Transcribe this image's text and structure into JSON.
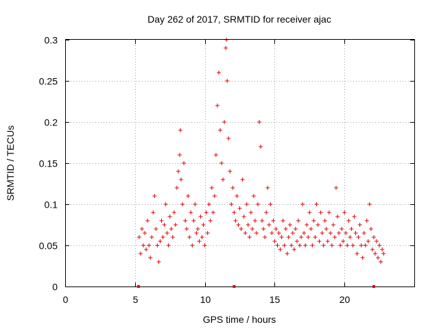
{
  "chart_data": {
    "type": "scatter",
    "title": "Day 262 of 2017, SRMTID for receiver ajac",
    "xlabel": "GPS time / hours",
    "ylabel": "SRMTID / TECUs",
    "xlim": [
      0,
      25
    ],
    "ylim": [
      0,
      0.3
    ],
    "xticks": [
      0,
      5,
      10,
      15,
      20
    ],
    "xtick_labels": [
      "0",
      "5",
      "10",
      "15",
      "20"
    ],
    "yticks": [
      0,
      0.05,
      0.1,
      0.15,
      0.2,
      0.25,
      0.3
    ],
    "ytick_labels": [
      "0",
      "0.05",
      "0.1",
      "0.15",
      "0.2",
      "0.25",
      "0.3"
    ],
    "grid": true,
    "marker_color": "#e00000",
    "axis_markers_x": [
      5.25,
      12.1,
      22.1
    ],
    "series": [
      {
        "name": "SRMTID",
        "points": [
          [
            5.3,
            0.06
          ],
          [
            5.4,
            0.04
          ],
          [
            5.5,
            0.07
          ],
          [
            5.6,
            0.05
          ],
          [
            5.7,
            0.065
          ],
          [
            5.8,
            0.045
          ],
          [
            5.9,
            0.08
          ],
          [
            6.0,
            0.05
          ],
          [
            6.1,
            0.035
          ],
          [
            6.2,
            0.06
          ],
          [
            6.3,
            0.09
          ],
          [
            6.4,
            0.11
          ],
          [
            6.5,
            0.07
          ],
          [
            6.6,
            0.05
          ],
          [
            6.7,
            0.03
          ],
          [
            6.8,
            0.055
          ],
          [
            6.9,
            0.08
          ],
          [
            7.0,
            0.06
          ],
          [
            7.1,
            0.075
          ],
          [
            7.2,
            0.1
          ],
          [
            7.3,
            0.065
          ],
          [
            7.4,
            0.05
          ],
          [
            7.5,
            0.085
          ],
          [
            7.6,
            0.07
          ],
          [
            7.7,
            0.06
          ],
          [
            7.8,
            0.09
          ],
          [
            7.9,
            0.075
          ],
          [
            8.0,
            0.12
          ],
          [
            8.1,
            0.14
          ],
          [
            8.2,
            0.16
          ],
          [
            8.25,
            0.19
          ],
          [
            8.3,
            0.13
          ],
          [
            8.4,
            0.1
          ],
          [
            8.5,
            0.15
          ],
          [
            8.6,
            0.08
          ],
          [
            8.7,
            0.07
          ],
          [
            8.8,
            0.11
          ],
          [
            8.9,
            0.06
          ],
          [
            9.0,
            0.09
          ],
          [
            9.1,
            0.05
          ],
          [
            9.2,
            0.08
          ],
          [
            9.3,
            0.1
          ],
          [
            9.4,
            0.065
          ],
          [
            9.5,
            0.07
          ],
          [
            9.6,
            0.055
          ],
          [
            9.7,
            0.085
          ],
          [
            9.8,
            0.06
          ],
          [
            9.9,
            0.075
          ],
          [
            10.0,
            0.05
          ],
          [
            10.1,
            0.09
          ],
          [
            10.2,
            0.065
          ],
          [
            10.3,
            0.1
          ],
          [
            10.4,
            0.08
          ],
          [
            10.5,
            0.12
          ],
          [
            10.6,
            0.09
          ],
          [
            10.7,
            0.11
          ],
          [
            10.8,
            0.16
          ],
          [
            10.9,
            0.22
          ],
          [
            11.0,
            0.26
          ],
          [
            11.1,
            0.19
          ],
          [
            11.2,
            0.15
          ],
          [
            11.3,
            0.13
          ],
          [
            11.4,
            0.2
          ],
          [
            11.5,
            0.29
          ],
          [
            11.55,
            0.3
          ],
          [
            11.6,
            0.25
          ],
          [
            11.7,
            0.18
          ],
          [
            11.8,
            0.14
          ],
          [
            11.9,
            0.1
          ],
          [
            12.0,
            0.12
          ],
          [
            12.1,
            0.09
          ],
          [
            12.2,
            0.08
          ],
          [
            12.3,
            0.11
          ],
          [
            12.4,
            0.075
          ],
          [
            12.5,
            0.095
          ],
          [
            12.6,
            0.07
          ],
          [
            12.7,
            0.13
          ],
          [
            12.8,
            0.085
          ],
          [
            12.9,
            0.065
          ],
          [
            13.0,
            0.1
          ],
          [
            13.1,
            0.075
          ],
          [
            13.2,
            0.06
          ],
          [
            13.3,
            0.09
          ],
          [
            13.4,
            0.07
          ],
          [
            13.5,
            0.11
          ],
          [
            13.6,
            0.08
          ],
          [
            13.7,
            0.065
          ],
          [
            13.8,
            0.1
          ],
          [
            13.9,
            0.2
          ],
          [
            14.0,
            0.17
          ],
          [
            14.1,
            0.08
          ],
          [
            14.2,
            0.07
          ],
          [
            14.3,
            0.06
          ],
          [
            14.4,
            0.09
          ],
          [
            14.5,
            0.12
          ],
          [
            14.6,
            0.075
          ],
          [
            14.7,
            0.1
          ],
          [
            14.8,
            0.065
          ],
          [
            14.9,
            0.08
          ],
          [
            15.0,
            0.055
          ],
          [
            15.1,
            0.07
          ],
          [
            15.2,
            0.05
          ],
          [
            15.3,
            0.065
          ],
          [
            15.4,
            0.045
          ],
          [
            15.5,
            0.06
          ],
          [
            15.6,
            0.08
          ],
          [
            15.7,
            0.05
          ],
          [
            15.8,
            0.07
          ],
          [
            15.9,
            0.04
          ],
          [
            16.0,
            0.06
          ],
          [
            16.1,
            0.075
          ],
          [
            16.2,
            0.05
          ],
          [
            16.3,
            0.065
          ],
          [
            16.4,
            0.045
          ],
          [
            16.5,
            0.07
          ],
          [
            16.6,
            0.055
          ],
          [
            16.7,
            0.08
          ],
          [
            16.8,
            0.05
          ],
          [
            16.9,
            0.06
          ],
          [
            17.0,
            0.1
          ],
          [
            17.1,
            0.065
          ],
          [
            17.2,
            0.05
          ],
          [
            17.3,
            0.075
          ],
          [
            17.4,
            0.06
          ],
          [
            17.5,
            0.09
          ],
          [
            17.6,
            0.07
          ],
          [
            17.7,
            0.05
          ],
          [
            17.8,
            0.08
          ],
          [
            17.9,
            0.06
          ],
          [
            18.0,
            0.1
          ],
          [
            18.1,
            0.075
          ],
          [
            18.2,
            0.055
          ],
          [
            18.3,
            0.09
          ],
          [
            18.4,
            0.065
          ],
          [
            18.5,
            0.05
          ],
          [
            18.6,
            0.08
          ],
          [
            18.7,
            0.07
          ],
          [
            18.8,
            0.055
          ],
          [
            18.9,
            0.09
          ],
          [
            19.0,
            0.065
          ],
          [
            19.1,
            0.05
          ],
          [
            19.2,
            0.075
          ],
          [
            19.3,
            0.06
          ],
          [
            19.4,
            0.12
          ],
          [
            19.5,
            0.085
          ],
          [
            19.6,
            0.065
          ],
          [
            19.7,
            0.05
          ],
          [
            19.8,
            0.07
          ],
          [
            19.9,
            0.055
          ],
          [
            20.0,
            0.09
          ],
          [
            20.1,
            0.065
          ],
          [
            20.2,
            0.05
          ],
          [
            20.3,
            0.08
          ],
          [
            20.4,
            0.06
          ],
          [
            20.5,
            0.07
          ],
          [
            20.6,
            0.05
          ],
          [
            20.7,
            0.085
          ],
          [
            20.8,
            0.065
          ],
          [
            20.9,
            0.04
          ],
          [
            21.0,
            0.06
          ],
          [
            21.1,
            0.075
          ],
          [
            21.2,
            0.05
          ],
          [
            21.3,
            0.035
          ],
          [
            21.4,
            0.065
          ],
          [
            21.5,
            0.05
          ],
          [
            21.6,
            0.08
          ],
          [
            21.7,
            0.055
          ],
          [
            21.8,
            0.1
          ],
          [
            21.9,
            0.07
          ],
          [
            22.0,
            0.045
          ],
          [
            22.1,
            0.06
          ],
          [
            22.2,
            0.04
          ],
          [
            22.3,
            0.055
          ],
          [
            22.4,
            0.035
          ],
          [
            22.5,
            0.05
          ],
          [
            22.6,
            0.03
          ],
          [
            22.7,
            0.045
          ],
          [
            22.8,
            0.04
          ]
        ]
      }
    ]
  }
}
